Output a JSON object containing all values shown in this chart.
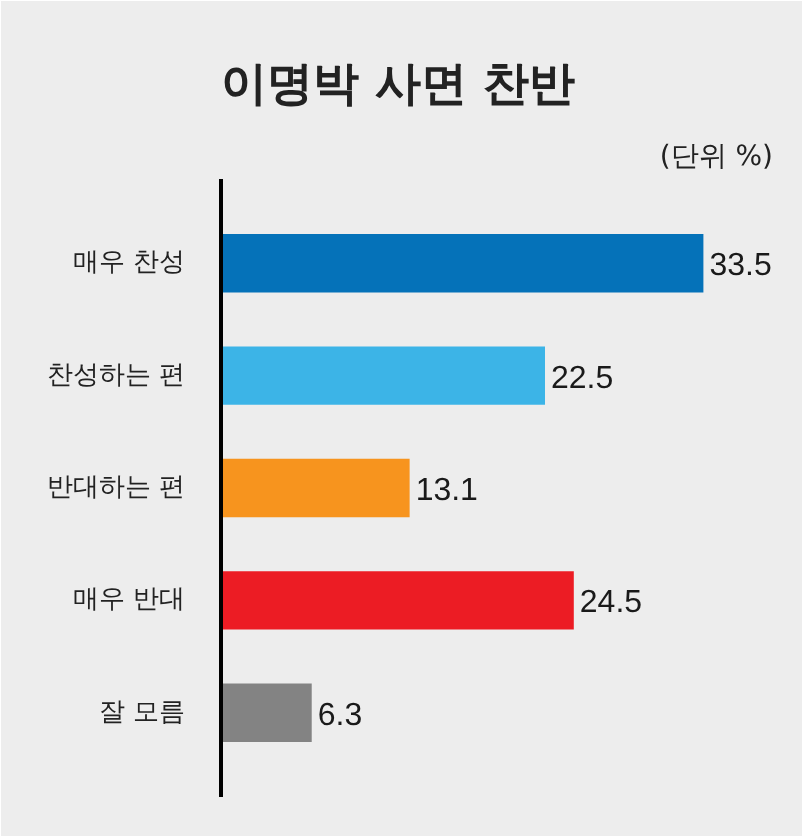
{
  "chart_data": {
    "type": "bar",
    "orientation": "horizontal",
    "title": "이명박 사면 찬반",
    "annotations": [
      "(단위 %)"
    ],
    "categories": [
      "매우 찬성",
      "찬성하는 편",
      "반대하는 편",
      "매우 반대",
      "잘 모름"
    ],
    "values": [
      33.5,
      22.5,
      13.1,
      24.5,
      6.3
    ],
    "colors": [
      "#0572b9",
      "#3cb4e7",
      "#f7941e",
      "#ec1c24",
      "#838383"
    ],
    "xlim": [
      0,
      40
    ],
    "data_labels": true,
    "tick_labels": "y"
  }
}
